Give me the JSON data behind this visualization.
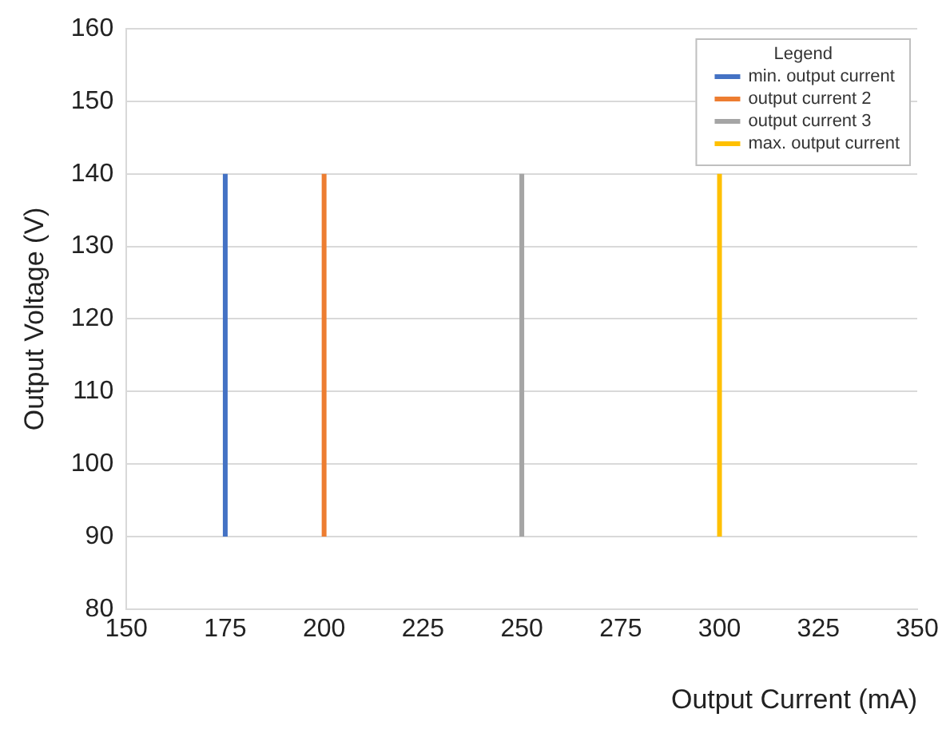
{
  "chart_data": {
    "type": "line",
    "xlabel": "Output Current (mA)",
    "ylabel": "Output Voltage (V)",
    "legend_title": "Legend",
    "legend": "top right",
    "grid": "y",
    "marker": "none",
    "line_style": "solid",
    "xlim": [
      150,
      350
    ],
    "xticks": [
      150,
      175,
      200,
      225,
      250,
      275,
      300,
      325,
      350
    ],
    "ylim": [
      80,
      160
    ],
    "yticks": [
      80,
      90,
      100,
      110,
      120,
      130,
      140,
      150,
      160
    ],
    "series": [
      {
        "name": "min. output current",
        "color": "#4472c4",
        "x": [
          175,
          175
        ],
        "values": [
          90,
          140
        ]
      },
      {
        "name": "output current 2",
        "color": "#ed7d31",
        "x": [
          200,
          200
        ],
        "values": [
          90,
          140
        ]
      },
      {
        "name": "output current 3",
        "color": "#a5a5a5",
        "x": [
          250,
          250
        ],
        "values": [
          90,
          140
        ]
      },
      {
        "name": "max. output current",
        "color": "#ffc000",
        "x": [
          300,
          300
        ],
        "values": [
          90,
          140
        ]
      }
    ]
  }
}
